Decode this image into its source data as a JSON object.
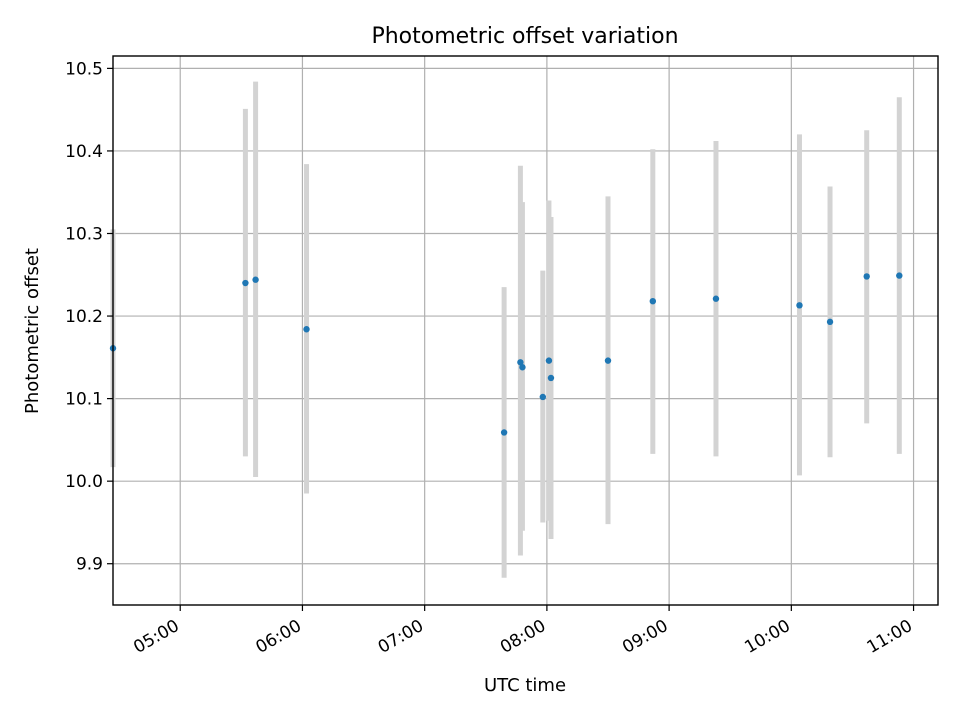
{
  "chart_data": {
    "type": "scatter",
    "title": "Photometric offset variation",
    "xlabel": "UTC time",
    "ylabel": "Photometric offset",
    "grid": true,
    "xlim": [
      "04:27",
      "11:12"
    ],
    "ylim": [
      9.85,
      10.515
    ],
    "x_ticks": [
      "05:00",
      "06:00",
      "07:00",
      "08:00",
      "09:00",
      "10:00",
      "11:00"
    ],
    "y_ticks": [
      9.9,
      10.0,
      10.1,
      10.2,
      10.3,
      10.4,
      10.5
    ],
    "y_tick_labels": [
      "9.9",
      "10.0",
      "10.1",
      "10.2",
      "10.3",
      "10.4",
      "10.5"
    ],
    "colors": {
      "point": "#1f77b4",
      "errorbar": "#d3d3d3"
    },
    "series": [
      {
        "points": [
          {
            "x": "04:27",
            "y": 10.161,
            "ylow": 10.017,
            "yhigh": 10.305
          },
          {
            "x": "05:32",
            "y": 10.24,
            "ylow": 10.03,
            "yhigh": 10.451
          },
          {
            "x": "05:37",
            "y": 10.244,
            "ylow": 10.005,
            "yhigh": 10.484
          },
          {
            "x": "06:02",
            "y": 10.184,
            "ylow": 9.985,
            "yhigh": 10.384
          },
          {
            "x": "07:39",
            "y": 10.059,
            "ylow": 9.883,
            "yhigh": 10.235
          },
          {
            "x": "07:47",
            "y": 10.144,
            "ylow": 9.91,
            "yhigh": 10.382
          },
          {
            "x": "07:48",
            "y": 10.138,
            "ylow": 9.94,
            "yhigh": 10.338
          },
          {
            "x": "07:58",
            "y": 10.102,
            "ylow": 9.95,
            "yhigh": 10.255
          },
          {
            "x": "08:01",
            "y": 10.146,
            "ylow": 9.952,
            "yhigh": 10.34
          },
          {
            "x": "08:02",
            "y": 10.125,
            "ylow": 9.93,
            "yhigh": 10.32
          },
          {
            "x": "08:30",
            "y": 10.146,
            "ylow": 9.948,
            "yhigh": 10.345
          },
          {
            "x": "08:52",
            "y": 10.218,
            "ylow": 10.033,
            "yhigh": 10.402
          },
          {
            "x": "09:23",
            "y": 10.221,
            "ylow": 10.03,
            "yhigh": 10.412
          },
          {
            "x": "10:04",
            "y": 10.213,
            "ylow": 10.007,
            "yhigh": 10.42
          },
          {
            "x": "10:19",
            "y": 10.193,
            "ylow": 10.029,
            "yhigh": 10.357
          },
          {
            "x": "10:37",
            "y": 10.248,
            "ylow": 10.07,
            "yhigh": 10.425
          },
          {
            "x": "10:53",
            "y": 10.249,
            "ylow": 10.033,
            "yhigh": 10.465
          }
        ]
      }
    ]
  }
}
